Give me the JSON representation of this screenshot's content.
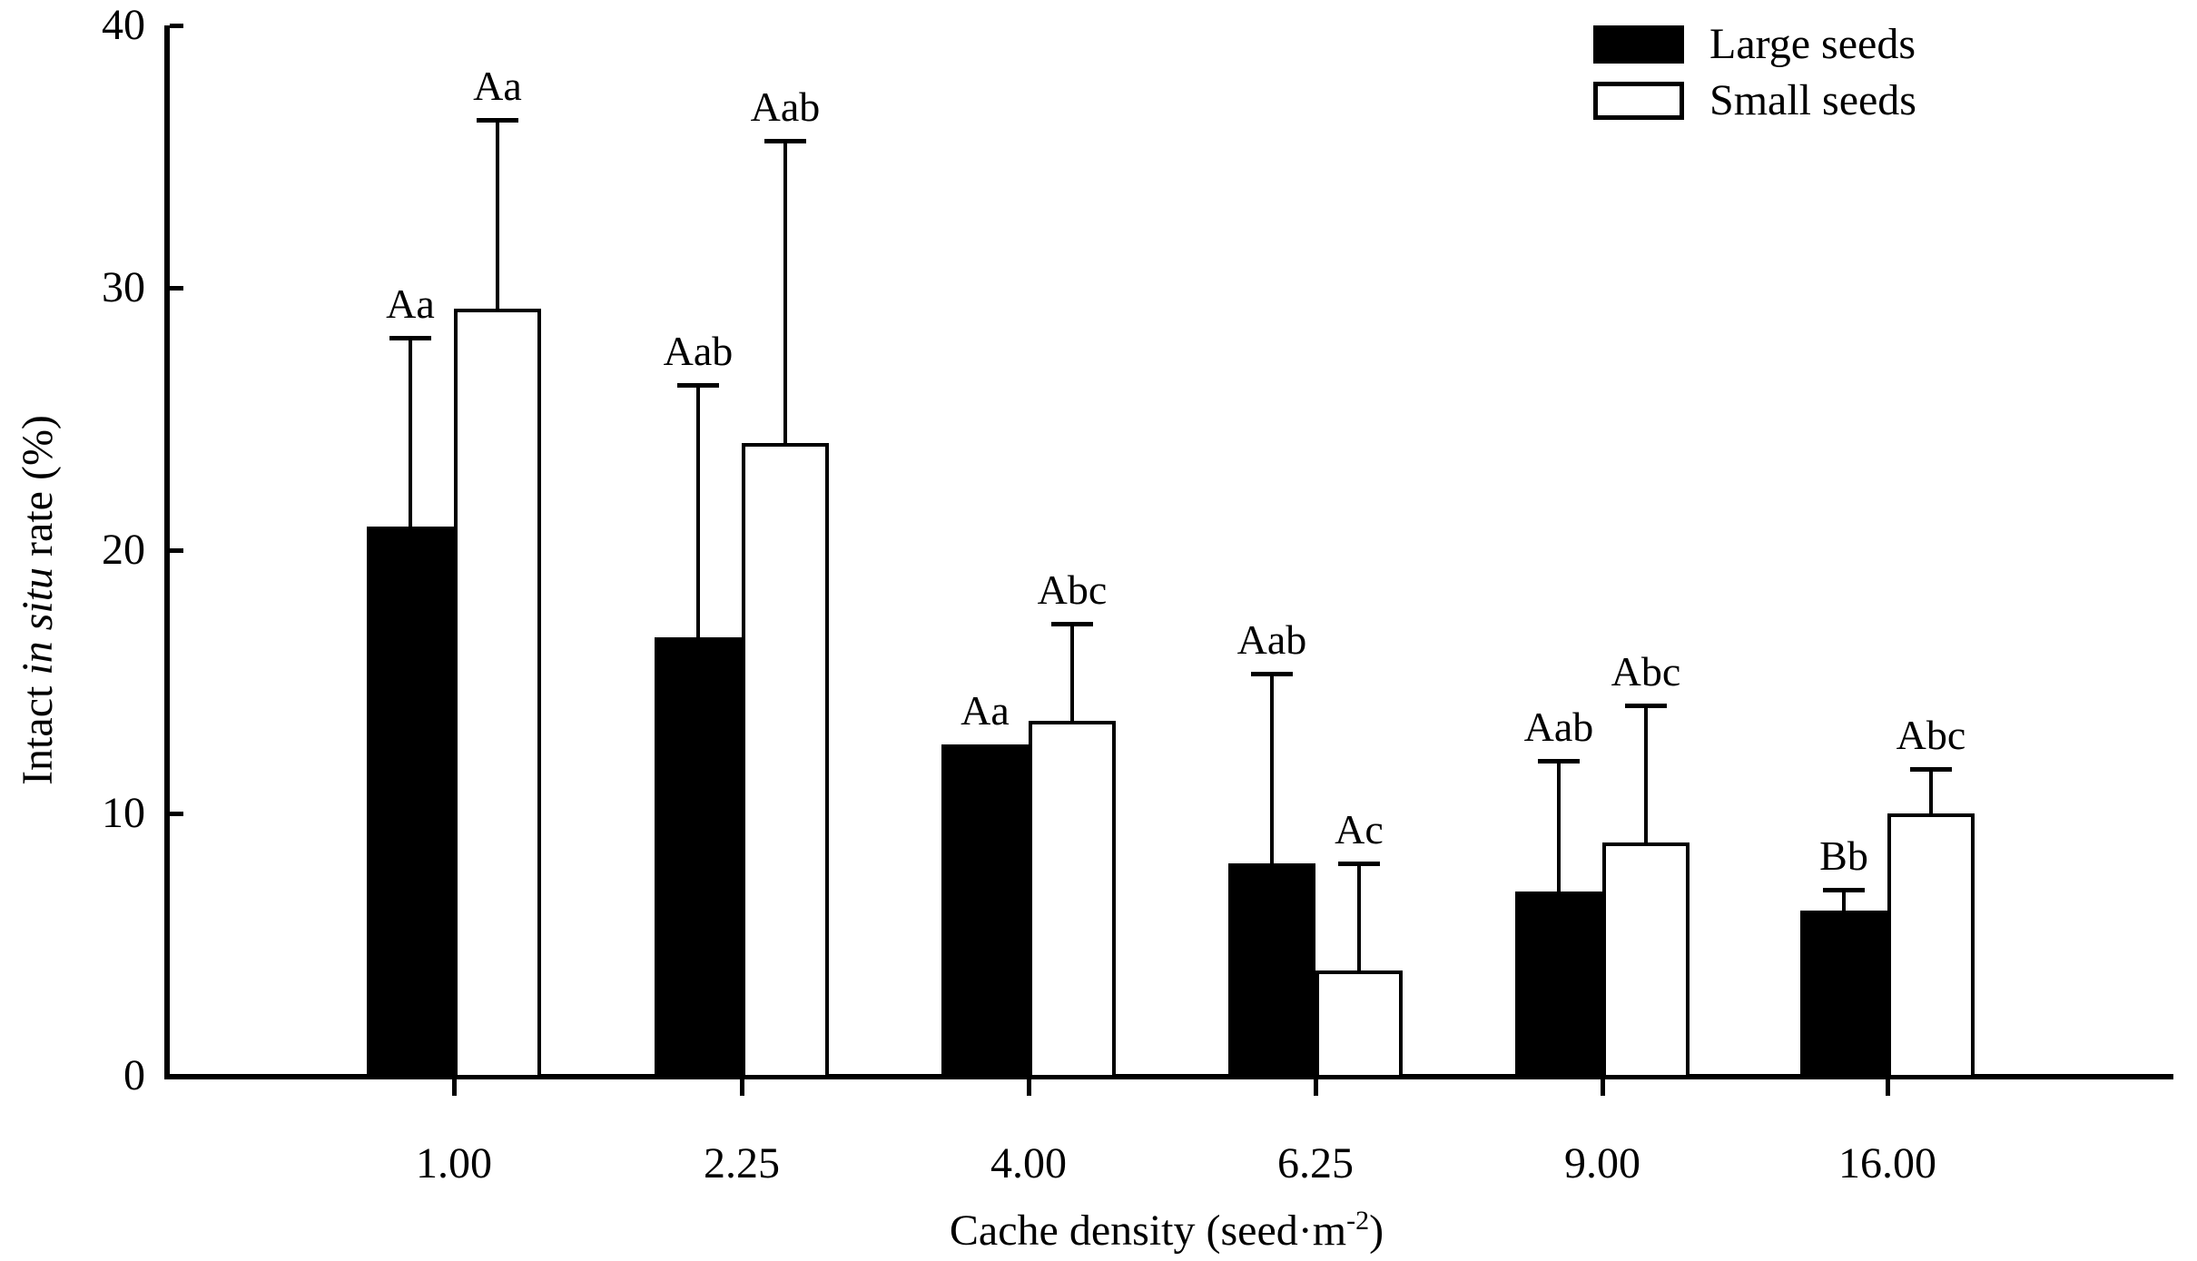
{
  "figure": {
    "background_color": "#ffffff",
    "foreground_color": "#000000"
  },
  "legend": {
    "position": "top-right",
    "items": [
      {
        "label": "Large seeds",
        "swatch": "filled-black"
      },
      {
        "label": "Small seeds",
        "swatch": "open-white"
      }
    ]
  },
  "chart_data": {
    "type": "bar",
    "title": "",
    "xlabel": "Cache density (seed·m⁻²)",
    "ylabel": "Intact in situ rate (%)",
    "xlabel_parts": [
      {
        "t": "Cache density (seed·m"
      },
      {
        "t": "-2",
        "sup": true
      },
      {
        "t": ")"
      }
    ],
    "ylabel_parts": [
      {
        "t": "Intact "
      },
      {
        "t": "in situ",
        "italic": true
      },
      {
        "t": " rate (%)"
      }
    ],
    "categories": [
      "1.00",
      "2.25",
      "4.00",
      "6.25",
      "9.00",
      "16.00"
    ],
    "series": [
      {
        "name": "Large seeds",
        "style": "filled",
        "fill": "#000000",
        "values": [
          20.9,
          16.7,
          12.6,
          8.1,
          7.0,
          6.3
        ],
        "err_plus": [
          7.2,
          9.6,
          0,
          7.2,
          5.0,
          0.8
        ],
        "letters": [
          "Aa",
          "Aab",
          "Aa",
          "Aab",
          "Aab",
          "Bb"
        ]
      },
      {
        "name": "Small seeds",
        "style": "open",
        "fill": "#ffffff",
        "values": [
          29.2,
          24.1,
          13.5,
          4.0,
          8.9,
          10.0
        ],
        "err_plus": [
          7.2,
          11.5,
          3.7,
          4.1,
          5.2,
          1.7
        ],
        "letters": [
          "Aa",
          "Aab",
          "Abc",
          "Ac",
          "Abc",
          "Abc"
        ]
      }
    ],
    "ylim": [
      0,
      40
    ],
    "yticks": [
      0,
      10,
      20,
      30,
      40
    ],
    "grid": false,
    "error_bars": "upper-only",
    "legend_position": "top-right"
  }
}
